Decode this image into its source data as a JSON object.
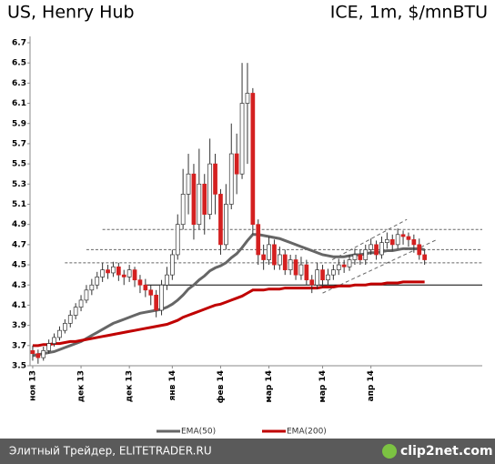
{
  "chart_data": {
    "type": "candlestick",
    "title": "US, Henry Hub",
    "subtitle": "ICE, 1m, $/mnBTU",
    "categories": [
      "ноя 13",
      null,
      null,
      null,
      null,
      null,
      null,
      null,
      null,
      "дек 13",
      null,
      null,
      null,
      null,
      null,
      null,
      null,
      null,
      "дек 13",
      null,
      null,
      null,
      null,
      null,
      null,
      null,
      "янв 14",
      null,
      null,
      null,
      null,
      null,
      null,
      null,
      null,
      "фев 14",
      null,
      null,
      null,
      null,
      null,
      null,
      null,
      null,
      "мар 14",
      null,
      null,
      null,
      null,
      null,
      null,
      null,
      null,
      null,
      "мар 14",
      null,
      null,
      null,
      null,
      null,
      null,
      null,
      null,
      "апр 14",
      null,
      null,
      null,
      null,
      null,
      null,
      null,
      null,
      null,
      null
    ],
    "open": [
      3.65,
      3.62,
      3.58,
      3.65,
      3.72,
      3.78,
      3.85,
      3.92,
      4.0,
      4.08,
      4.15,
      4.25,
      4.3,
      4.38,
      4.45,
      4.42,
      4.48,
      4.4,
      4.38,
      4.45,
      4.35,
      4.3,
      4.25,
      4.2,
      4.05,
      4.3,
      4.4,
      4.6,
      4.9,
      5.2,
      5.4,
      4.9,
      5.3,
      5.0,
      5.5,
      5.2,
      4.7,
      5.1,
      5.6,
      5.4,
      6.1,
      6.2,
      4.9,
      4.6,
      4.55,
      4.7,
      4.5,
      4.6,
      4.45,
      4.55,
      4.4,
      4.5,
      4.35,
      4.3,
      4.45,
      4.35,
      4.4,
      4.45,
      4.5,
      4.48,
      4.55,
      4.6,
      4.55,
      4.65,
      4.7,
      4.6,
      4.72,
      4.75,
      4.7,
      4.8,
      4.78,
      4.75,
      4.7,
      4.6
    ],
    "high": [
      3.7,
      3.66,
      3.69,
      3.76,
      3.82,
      3.89,
      3.96,
      4.05,
      4.12,
      4.2,
      4.3,
      4.36,
      4.43,
      4.52,
      4.5,
      4.53,
      4.52,
      4.45,
      4.5,
      4.48,
      4.4,
      4.36,
      4.3,
      4.25,
      4.35,
      4.48,
      4.65,
      5.0,
      5.45,
      5.6,
      5.5,
      5.65,
      5.4,
      5.75,
      5.6,
      5.25,
      5.3,
      5.9,
      5.8,
      6.5,
      6.5,
      6.25,
      4.95,
      4.7,
      4.78,
      4.75,
      4.68,
      4.65,
      4.6,
      4.6,
      4.58,
      4.55,
      4.4,
      4.52,
      4.5,
      4.46,
      4.5,
      4.56,
      4.55,
      4.6,
      4.66,
      4.65,
      4.7,
      4.76,
      4.74,
      4.78,
      4.82,
      4.8,
      4.86,
      4.84,
      4.82,
      4.8,
      4.76,
      4.65
    ],
    "low": [
      3.55,
      3.52,
      3.55,
      3.62,
      3.69,
      3.75,
      3.82,
      3.88,
      3.96,
      4.04,
      4.12,
      4.2,
      4.26,
      4.33,
      4.36,
      4.38,
      4.34,
      4.3,
      4.33,
      4.28,
      4.22,
      4.18,
      4.1,
      3.98,
      4.0,
      4.25,
      4.35,
      4.55,
      4.85,
      5.0,
      4.75,
      4.85,
      4.8,
      4.95,
      5.0,
      4.6,
      4.65,
      5.05,
      5.2,
      5.35,
      5.5,
      4.8,
      4.5,
      4.45,
      4.5,
      4.45,
      4.45,
      4.4,
      4.4,
      4.35,
      4.35,
      4.3,
      4.22,
      4.26,
      4.28,
      4.3,
      4.35,
      4.4,
      4.42,
      4.44,
      4.5,
      4.5,
      4.5,
      4.6,
      4.55,
      4.56,
      4.66,
      4.64,
      4.66,
      4.7,
      4.68,
      4.62,
      4.55,
      4.5
    ],
    "close": [
      3.62,
      3.58,
      3.65,
      3.72,
      3.78,
      3.85,
      3.92,
      4.0,
      4.08,
      4.15,
      4.25,
      4.3,
      4.38,
      4.45,
      4.42,
      4.48,
      4.4,
      4.38,
      4.45,
      4.35,
      4.3,
      4.25,
      4.2,
      4.05,
      4.3,
      4.4,
      4.6,
      4.9,
      5.2,
      5.4,
      4.9,
      5.3,
      5.0,
      5.5,
      5.2,
      4.7,
      5.1,
      5.6,
      5.4,
      6.1,
      6.2,
      4.9,
      4.6,
      4.55,
      4.7,
      4.5,
      4.6,
      4.45,
      4.55,
      4.4,
      4.5,
      4.35,
      4.3,
      4.45,
      4.35,
      4.4,
      4.45,
      4.5,
      4.48,
      4.55,
      4.6,
      4.55,
      4.65,
      4.7,
      4.6,
      4.72,
      4.75,
      4.7,
      4.8,
      4.78,
      4.75,
      4.7,
      4.6,
      4.55
    ],
    "up_color": "#ffffff",
    "down_color": "#d42020",
    "series": [
      {
        "name": "EMA(50)",
        "color": "#666666",
        "values": [
          3.6,
          3.61,
          3.62,
          3.63,
          3.64,
          3.66,
          3.68,
          3.7,
          3.72,
          3.74,
          3.77,
          3.8,
          3.83,
          3.86,
          3.89,
          3.92,
          3.94,
          3.96,
          3.98,
          4.0,
          4.02,
          4.03,
          4.04,
          4.05,
          4.06,
          4.08,
          4.11,
          4.15,
          4.2,
          4.26,
          4.3,
          4.35,
          4.39,
          4.44,
          4.47,
          4.49,
          4.52,
          4.57,
          4.61,
          4.67,
          4.74,
          4.8,
          4.8,
          4.79,
          4.78,
          4.77,
          4.76,
          4.74,
          4.72,
          4.7,
          4.68,
          4.66,
          4.64,
          4.62,
          4.6,
          4.59,
          4.58,
          4.58,
          4.58,
          4.59,
          4.6,
          4.6,
          4.61,
          4.62,
          4.62,
          4.63,
          4.64,
          4.64,
          4.65,
          4.66,
          4.66,
          4.66,
          4.66,
          4.65
        ]
      },
      {
        "name": "EMA(200)",
        "color": "#c00000",
        "values": [
          3.7,
          3.7,
          3.71,
          3.71,
          3.72,
          3.72,
          3.73,
          3.74,
          3.74,
          3.75,
          3.76,
          3.77,
          3.78,
          3.79,
          3.8,
          3.81,
          3.82,
          3.83,
          3.84,
          3.85,
          3.86,
          3.87,
          3.88,
          3.89,
          3.9,
          3.91,
          3.93,
          3.95,
          3.98,
          4.0,
          4.02,
          4.04,
          4.06,
          4.08,
          4.1,
          4.11,
          4.13,
          4.15,
          4.17,
          4.19,
          4.22,
          4.25,
          4.25,
          4.25,
          4.26,
          4.26,
          4.26,
          4.27,
          4.27,
          4.27,
          4.27,
          4.27,
          4.27,
          4.27,
          4.28,
          4.28,
          4.28,
          4.29,
          4.29,
          4.29,
          4.3,
          4.3,
          4.3,
          4.31,
          4.31,
          4.31,
          4.32,
          4.32,
          4.32,
          4.33,
          4.33,
          4.33,
          4.33,
          4.33
        ]
      }
    ],
    "levels": [
      {
        "value": 4.85,
        "from": 13,
        "style": "dashed"
      },
      {
        "value": 4.65,
        "from": 10,
        "style": "dashed"
      },
      {
        "value": 4.52,
        "from": 6,
        "style": "dashed"
      },
      {
        "value": 4.3,
        "from": 21,
        "style": "solid"
      }
    ],
    "channel": [
      {
        "x": [
          55.8,
          69.7
        ],
        "y": [
          4.55,
          4.95
        ]
      },
      {
        "x": [
          54,
          75.3
        ],
        "y": [
          4.22,
          4.75
        ]
      }
    ],
    "ylim": [
      3.5,
      6.7
    ],
    "yticks": [
      3.5,
      3.7,
      3.9,
      4.1,
      4.3,
      4.5,
      4.7,
      4.9,
      5.1,
      5.3,
      5.5,
      5.7,
      5.9,
      6.1,
      6.3,
      6.5,
      6.7
    ]
  },
  "footer": {
    "source": "Элитный Трейдер, ELITETRADER.RU",
    "watermark": "clip2net.com"
  }
}
